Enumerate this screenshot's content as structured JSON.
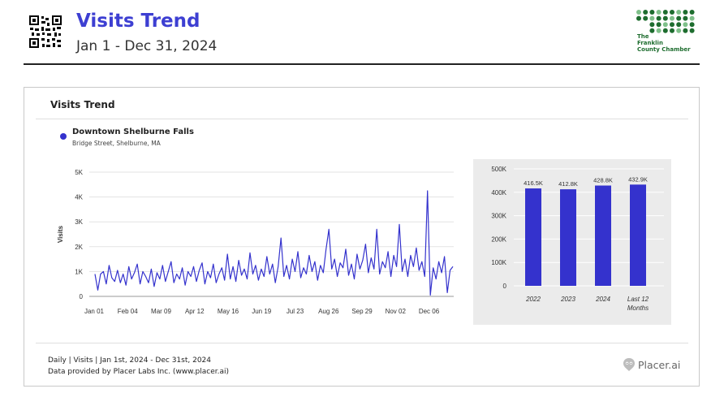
{
  "header": {
    "title": "Visits Trend",
    "subtitle": "Jan 1 - Dec 31, 2024",
    "logo": {
      "line1": "The",
      "line2": "Franklin",
      "line3": "County Chamber",
      "color": "#1e6d2f"
    },
    "qr_icon": "qr-code-icon"
  },
  "card": {
    "title": "Visits Trend",
    "legend": {
      "name": "Downtown Shelburne Falls",
      "address": "Bridge Street, Shelburne, MA",
      "color": "#3432cd"
    },
    "footer": {
      "line1": "Daily | Visits | Jan 1st, 2024 - Dec 31st, 2024",
      "line2": "Data provided by Placer Labs Inc. (www.placer.ai)"
    },
    "brand": {
      "name": "Placer.ai",
      "icon": "placer-logo-icon"
    }
  },
  "colors": {
    "title": "#3d3fd2",
    "series": "#3432cd",
    "panel": "#ebebeb"
  },
  "chart_data": [
    {
      "type": "line",
      "title": "",
      "xlabel": "",
      "ylabel": "Visits",
      "x_range": [
        "2024-01-01",
        "2024-12-31"
      ],
      "ylim": [
        0,
        5000
      ],
      "y_ticks": [
        0,
        1000,
        2000,
        3000,
        4000,
        5000
      ],
      "y_tick_labels": [
        "0",
        "1K",
        "2K",
        "3K",
        "4K",
        "5K"
      ],
      "x_tick_labels": [
        "Jan 01",
        "Feb 04",
        "Mar 09",
        "Apr 12",
        "May 16",
        "Jun 19",
        "Jul 23",
        "Aug 26",
        "Sep 29",
        "Nov 02",
        "Dec 06"
      ],
      "grid": "horizontal",
      "series": [
        {
          "name": "Downtown Shelburne Falls",
          "values": [
            900,
            250,
            900,
            1000,
            500,
            1250,
            750,
            600,
            1050,
            550,
            900,
            450,
            1200,
            700,
            950,
            1300,
            500,
            1000,
            800,
            550,
            1100,
            400,
            950,
            700,
            1250,
            600,
            1000,
            1400,
            550,
            900,
            700,
            1150,
            450,
            1000,
            800,
            1200,
            600,
            1050,
            1350,
            500,
            1000,
            750,
            1300,
            550,
            900,
            1150,
            650,
            1700,
            700,
            1200,
            600,
            1450,
            850,
            1100,
            700,
            1750,
            900,
            1250,
            650,
            1100,
            800,
            1600,
            900,
            1300,
            550,
            1200,
            2350,
            800,
            1250,
            700,
            1500,
            1000,
            1800,
            750,
            1150,
            900,
            1650,
            1000,
            1400,
            650,
            1250,
            950,
            1900,
            2700,
            1100,
            1500,
            800,
            1350,
            1150,
            1900,
            850,
            1300,
            700,
            1700,
            1100,
            1450,
            2100,
            950,
            1550,
            1100,
            2700,
            900,
            1400,
            1150,
            1800,
            800,
            1650,
            1200,
            2900,
            1000,
            1500,
            800,
            1650,
            1200,
            1950,
            1050,
            1400,
            800,
            4250,
            50,
            1150,
            700,
            1400,
            950,
            1600,
            150,
            1050,
            1200
          ]
        }
      ]
    },
    {
      "type": "bar",
      "title": "",
      "xlabel": "",
      "ylabel": "",
      "categories": [
        "2022",
        "2023",
        "2024",
        "Last 12 Months"
      ],
      "values": [
        416500,
        412800,
        428800,
        432900
      ],
      "value_labels": [
        "416.5K",
        "412.8K",
        "428.8K",
        "432.9K"
      ],
      "ylim": [
        0,
        500000
      ],
      "y_ticks": [
        0,
        100000,
        200000,
        300000,
        400000,
        500000
      ],
      "y_tick_labels": [
        "0",
        "100K",
        "200K",
        "300K",
        "400K",
        "500K"
      ],
      "grid": "horizontal"
    }
  ]
}
